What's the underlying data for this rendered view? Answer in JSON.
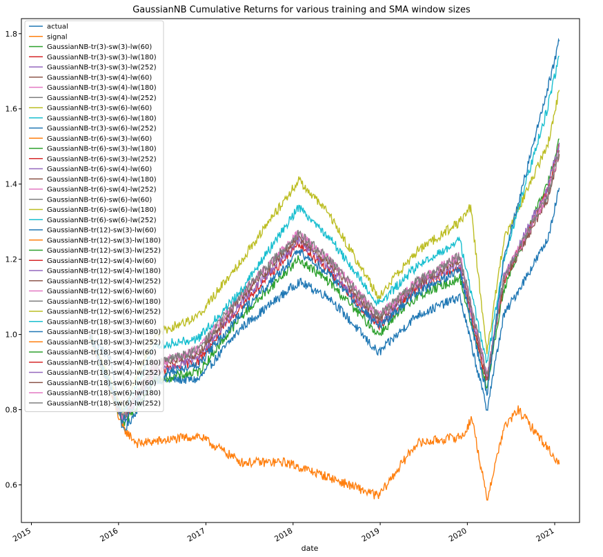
{
  "chart_data": {
    "type": "line",
    "title": "GaussianNB Cumulative Returns for various training and SMA window sizes",
    "xlabel": "date",
    "ylabel": "",
    "xlim": [
      "2014-11-20",
      "2021-04-15"
    ],
    "ylim": [
      0.5,
      1.84
    ],
    "x_ticks": [
      "2015",
      "2016",
      "2017",
      "2018",
      "2019",
      "2020",
      "2021"
    ],
    "y_ticks": [
      "0.6",
      "0.8",
      "1.0",
      "1.2",
      "1.4",
      "1.6",
      "1.8"
    ],
    "grid": false,
    "legend_position": "upper left",
    "series": [
      {
        "name": "actual",
        "color": "#1f77b4",
        "points": [
          [
            "2015-09-01",
            1.0
          ],
          [
            "2015-12-01",
            0.93
          ],
          [
            "2016-01-20",
            0.74
          ],
          [
            "2016-06-01",
            0.88
          ],
          [
            "2016-12-01",
            0.88
          ],
          [
            "2017-06-01",
            1.02
          ],
          [
            "2018-01-25",
            1.14
          ],
          [
            "2018-06-01",
            1.1
          ],
          [
            "2018-12-25",
            0.95
          ],
          [
            "2019-06-01",
            1.05
          ],
          [
            "2019-12-01",
            1.1
          ],
          [
            "2020-03-23",
            0.8
          ],
          [
            "2020-06-01",
            1.05
          ],
          [
            "2020-12-01",
            1.25
          ],
          [
            "2021-01-20",
            1.39
          ]
        ]
      },
      {
        "name": "signal",
        "color": "#ff7f0e",
        "points": [
          [
            "2015-09-01",
            1.0
          ],
          [
            "2016-01-20",
            0.75
          ],
          [
            "2016-03-20",
            0.71
          ],
          [
            "2016-08-01",
            0.72
          ],
          [
            "2016-12-01",
            0.73
          ],
          [
            "2017-06-01",
            0.66
          ],
          [
            "2017-12-01",
            0.66
          ],
          [
            "2018-06-01",
            0.62
          ],
          [
            "2018-12-25",
            0.57
          ],
          [
            "2019-06-01",
            0.71
          ],
          [
            "2019-12-15",
            0.73
          ],
          [
            "2020-01-20",
            0.78
          ],
          [
            "2020-03-23",
            0.56
          ],
          [
            "2020-06-01",
            0.75
          ],
          [
            "2020-08-01",
            0.8
          ],
          [
            "2020-12-01",
            0.7
          ],
          [
            "2021-01-20",
            0.655
          ]
        ]
      },
      {
        "name": "GaussianNB-tr(3)-sw(3)-lw(60)",
        "color": "#2ca02c",
        "points": [
          [
            "2015-09-01",
            1.0
          ],
          [
            "2016-01-20",
            0.76
          ],
          [
            "2016-06-01",
            0.88
          ],
          [
            "2016-12-01",
            0.9
          ],
          [
            "2017-06-01",
            1.05
          ],
          [
            "2018-01-25",
            1.2
          ],
          [
            "2018-06-01",
            1.14
          ],
          [
            "2018-12-25",
            1.0
          ],
          [
            "2019-06-01",
            1.1
          ],
          [
            "2019-12-01",
            1.15
          ],
          [
            "2020-03-23",
            0.86
          ],
          [
            "2020-06-01",
            1.12
          ],
          [
            "2020-12-01",
            1.4
          ],
          [
            "2021-01-20",
            1.52
          ]
        ]
      },
      {
        "name": "GaussianNB-tr(3)-sw(3)-lw(180)",
        "color": "#d62728",
        "points": [
          [
            "2015-09-01",
            1.0
          ],
          [
            "2016-01-20",
            0.77
          ],
          [
            "2016-06-01",
            0.9
          ],
          [
            "2016-12-01",
            0.93
          ],
          [
            "2017-06-01",
            1.08
          ],
          [
            "2018-01-25",
            1.24
          ],
          [
            "2018-06-01",
            1.17
          ],
          [
            "2018-12-25",
            1.02
          ],
          [
            "2019-06-01",
            1.12
          ],
          [
            "2019-12-01",
            1.18
          ],
          [
            "2020-03-23",
            0.87
          ],
          [
            "2020-06-01",
            1.14
          ],
          [
            "2020-12-01",
            1.38
          ],
          [
            "2021-01-20",
            1.5
          ]
        ]
      },
      {
        "name": "GaussianNB-tr(3)-sw(3)-lw(252)",
        "color": "#9467bd",
        "points": [
          [
            "2015-09-01",
            1.0
          ],
          [
            "2016-01-20",
            0.77
          ],
          [
            "2016-06-01",
            0.9
          ],
          [
            "2016-12-01",
            0.94
          ],
          [
            "2017-06-01",
            1.09
          ],
          [
            "2018-01-25",
            1.25
          ],
          [
            "2018-06-01",
            1.18
          ],
          [
            "2018-12-25",
            1.03
          ],
          [
            "2019-06-01",
            1.13
          ],
          [
            "2019-12-01",
            1.19
          ],
          [
            "2020-03-23",
            0.88
          ],
          [
            "2020-06-01",
            1.15
          ],
          [
            "2020-12-01",
            1.39
          ],
          [
            "2021-01-20",
            1.51
          ]
        ]
      },
      {
        "name": "GaussianNB-tr(3)-sw(4)-lw(60)",
        "color": "#8c564b",
        "points": [
          [
            "2015-09-01",
            1.0
          ],
          [
            "2016-01-20",
            0.78
          ],
          [
            "2016-06-01",
            0.92
          ],
          [
            "2016-12-01",
            0.95
          ],
          [
            "2017-06-01",
            1.1
          ],
          [
            "2018-01-25",
            1.26
          ],
          [
            "2018-06-01",
            1.19
          ],
          [
            "2018-12-25",
            1.04
          ],
          [
            "2019-06-01",
            1.13
          ],
          [
            "2019-12-01",
            1.2
          ],
          [
            "2020-03-23",
            0.88
          ],
          [
            "2020-06-01",
            1.14
          ],
          [
            "2020-12-01",
            1.36
          ],
          [
            "2021-01-20",
            1.48
          ]
        ]
      },
      {
        "name": "GaussianNB-tr(3)-sw(4)-lw(180)",
        "color": "#e377c2",
        "points": [
          [
            "2015-09-01",
            1.0
          ],
          [
            "2016-01-20",
            0.78
          ],
          [
            "2016-06-01",
            0.92
          ],
          [
            "2016-12-01",
            0.96
          ],
          [
            "2017-06-01",
            1.11
          ],
          [
            "2018-01-25",
            1.27
          ],
          [
            "2018-06-01",
            1.2
          ],
          [
            "2018-12-25",
            1.05
          ],
          [
            "2019-06-01",
            1.14
          ],
          [
            "2019-12-01",
            1.21
          ],
          [
            "2020-03-23",
            0.89
          ],
          [
            "2020-06-01",
            1.15
          ],
          [
            "2020-12-01",
            1.37
          ],
          [
            "2021-01-20",
            1.49
          ]
        ]
      },
      {
        "name": "GaussianNB-tr(3)-sw(4)-lw(252)",
        "color": "#7f7f7f",
        "points": [
          [
            "2015-09-01",
            1.0
          ],
          [
            "2016-01-20",
            0.78
          ],
          [
            "2016-06-01",
            0.92
          ],
          [
            "2016-12-01",
            0.96
          ],
          [
            "2017-06-01",
            1.11
          ],
          [
            "2018-01-25",
            1.27
          ],
          [
            "2018-06-01",
            1.2
          ],
          [
            "2018-12-25",
            1.05
          ],
          [
            "2019-06-01",
            1.14
          ],
          [
            "2019-12-01",
            1.21
          ],
          [
            "2020-03-23",
            0.89
          ],
          [
            "2020-06-01",
            1.15
          ],
          [
            "2020-12-01",
            1.37
          ],
          [
            "2021-01-20",
            1.49
          ]
        ]
      },
      {
        "name": "GaussianNB-tr(3)-sw(6)-lw(60)",
        "color": "#bcbd22",
        "points": [
          [
            "2015-09-01",
            1.0
          ],
          [
            "2016-01-20",
            0.8
          ],
          [
            "2016-06-01",
            1.0
          ],
          [
            "2016-12-01",
            1.05
          ],
          [
            "2017-06-01",
            1.2
          ],
          [
            "2018-01-25",
            1.41
          ],
          [
            "2018-06-01",
            1.32
          ],
          [
            "2018-12-25",
            1.1
          ],
          [
            "2019-06-01",
            1.22
          ],
          [
            "2019-12-01",
            1.3
          ],
          [
            "2020-01-15",
            1.34
          ],
          [
            "2020-03-23",
            0.95
          ],
          [
            "2020-06-01",
            1.25
          ],
          [
            "2020-12-01",
            1.5
          ],
          [
            "2021-01-20",
            1.65
          ]
        ]
      },
      {
        "name": "GaussianNB-tr(3)-sw(6)-lw(180)",
        "color": "#17becf",
        "points": [
          [
            "2015-09-01",
            1.0
          ],
          [
            "2016-01-20",
            0.79
          ],
          [
            "2016-06-01",
            0.97
          ],
          [
            "2016-12-01",
            0.99
          ],
          [
            "2017-06-01",
            1.12
          ],
          [
            "2018-01-25",
            1.34
          ],
          [
            "2018-06-01",
            1.26
          ],
          [
            "2018-12-25",
            1.08
          ],
          [
            "2019-06-01",
            1.18
          ],
          [
            "2019-12-01",
            1.25
          ],
          [
            "2020-03-23",
            0.92
          ],
          [
            "2020-06-01",
            1.2
          ],
          [
            "2020-12-01",
            1.6
          ],
          [
            "2021-01-20",
            1.74
          ]
        ]
      },
      {
        "name": "GaussianNB-tr(3)-sw(6)-lw(252)",
        "color": "#1f77b4",
        "points": [
          [
            "2015-09-01",
            1.0
          ],
          [
            "2016-01-20",
            0.77
          ],
          [
            "2016-06-01",
            0.89
          ],
          [
            "2016-12-01",
            0.92
          ],
          [
            "2017-06-01",
            1.06
          ],
          [
            "2018-01-25",
            1.22
          ],
          [
            "2018-06-01",
            1.16
          ],
          [
            "2018-12-25",
            1.02
          ],
          [
            "2019-06-01",
            1.11
          ],
          [
            "2019-12-01",
            1.17
          ],
          [
            "2020-03-23",
            0.84
          ],
          [
            "2020-06-01",
            1.2
          ],
          [
            "2020-12-01",
            1.65
          ],
          [
            "2021-01-20",
            1.78
          ]
        ]
      }
    ],
    "legend_entries": [
      {
        "label": "actual",
        "color": "#1f77b4"
      },
      {
        "label": "signal",
        "color": "#ff7f0e"
      },
      {
        "label": "GaussianNB-tr(3)-sw(3)-lw(60)",
        "color": "#2ca02c"
      },
      {
        "label": "GaussianNB-tr(3)-sw(3)-lw(180)",
        "color": "#d62728"
      },
      {
        "label": "GaussianNB-tr(3)-sw(3)-lw(252)",
        "color": "#9467bd"
      },
      {
        "label": "GaussianNB-tr(3)-sw(4)-lw(60)",
        "color": "#8c564b"
      },
      {
        "label": "GaussianNB-tr(3)-sw(4)-lw(180)",
        "color": "#e377c2"
      },
      {
        "label": "GaussianNB-tr(3)-sw(4)-lw(252)",
        "color": "#7f7f7f"
      },
      {
        "label": "GaussianNB-tr(3)-sw(6)-lw(60)",
        "color": "#bcbd22"
      },
      {
        "label": "GaussianNB-tr(3)-sw(6)-lw(180)",
        "color": "#17becf"
      },
      {
        "label": "GaussianNB-tr(3)-sw(6)-lw(252)",
        "color": "#1f77b4"
      },
      {
        "label": "GaussianNB-tr(6)-sw(3)-lw(60)",
        "color": "#ff7f0e"
      },
      {
        "label": "GaussianNB-tr(6)-sw(3)-lw(180)",
        "color": "#2ca02c"
      },
      {
        "label": "GaussianNB-tr(6)-sw(3)-lw(252)",
        "color": "#d62728"
      },
      {
        "label": "GaussianNB-tr(6)-sw(4)-lw(60)",
        "color": "#9467bd"
      },
      {
        "label": "GaussianNB-tr(6)-sw(4)-lw(180)",
        "color": "#8c564b"
      },
      {
        "label": "GaussianNB-tr(6)-sw(4)-lw(252)",
        "color": "#e377c2"
      },
      {
        "label": "GaussianNB-tr(6)-sw(6)-lw(60)",
        "color": "#7f7f7f"
      },
      {
        "label": "GaussianNB-tr(6)-sw(6)-lw(180)",
        "color": "#bcbd22"
      },
      {
        "label": "GaussianNB-tr(6)-sw(6)-lw(252)",
        "color": "#17becf"
      },
      {
        "label": "GaussianNB-tr(12)-sw(3)-lw(60)",
        "color": "#1f77b4"
      },
      {
        "label": "GaussianNB-tr(12)-sw(3)-lw(180)",
        "color": "#ff7f0e"
      },
      {
        "label": "GaussianNB-tr(12)-sw(3)-lw(252)",
        "color": "#2ca02c"
      },
      {
        "label": "GaussianNB-tr(12)-sw(4)-lw(60)",
        "color": "#d62728"
      },
      {
        "label": "GaussianNB-tr(12)-sw(4)-lw(180)",
        "color": "#9467bd"
      },
      {
        "label": "GaussianNB-tr(12)-sw(4)-lw(252)",
        "color": "#8c564b"
      },
      {
        "label": "GaussianNB-tr(12)-sw(6)-lw(60)",
        "color": "#e377c2"
      },
      {
        "label": "GaussianNB-tr(12)-sw(6)-lw(180)",
        "color": "#7f7f7f"
      },
      {
        "label": "GaussianNB-tr(12)-sw(6)-lw(252)",
        "color": "#bcbd22"
      },
      {
        "label": "GaussianNB-tr(18)-sw(3)-lw(60)",
        "color": "#17becf"
      },
      {
        "label": "GaussianNB-tr(18)-sw(3)-lw(180)",
        "color": "#1f77b4"
      },
      {
        "label": "GaussianNB-tr(18)-sw(3)-lw(252)",
        "color": "#ff7f0e"
      },
      {
        "label": "GaussianNB-tr(18)-sw(4)-lw(60)",
        "color": "#2ca02c"
      },
      {
        "label": "GaussianNB-tr(18)-sw(4)-lw(180)",
        "color": "#d62728"
      },
      {
        "label": "GaussianNB-tr(18)-sw(4)-lw(252)",
        "color": "#9467bd"
      },
      {
        "label": "GaussianNB-tr(18)-sw(6)-lw(60)",
        "color": "#8c564b"
      },
      {
        "label": "GaussianNB-tr(18)-sw(6)-lw(180)",
        "color": "#e377c2"
      },
      {
        "label": "GaussianNB-tr(18)-sw(6)-lw(252)",
        "color": "#7f7f7f"
      }
    ]
  }
}
